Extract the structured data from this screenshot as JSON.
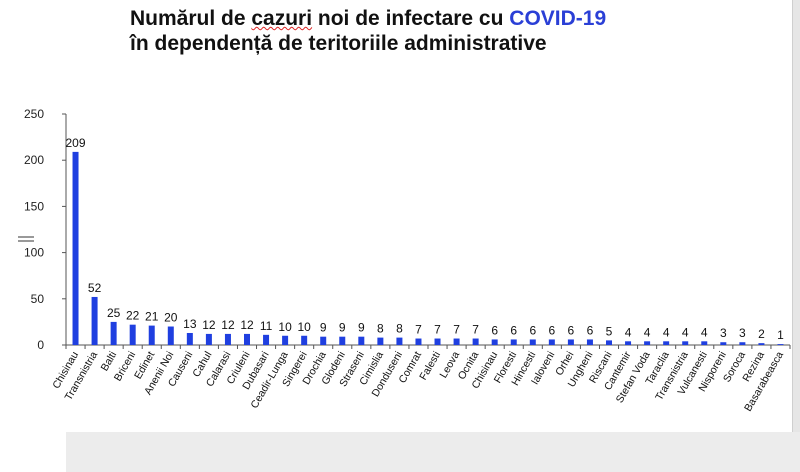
{
  "title": {
    "line1_prefix": "Numărul de ",
    "line1_wavy": "cazuri",
    "line1_mid": " noi de infectare cu ",
    "line1_accent": "COVID-19",
    "line2": "în dependență de teritoriile administrative"
  },
  "colors": {
    "bar": "#1f3fe0",
    "accent": "#2a3fd6",
    "axis": "#555555"
  },
  "chart_data": {
    "type": "bar",
    "title": "Numărul de cazuri noi de infectare cu COVID-19 în dependență de teritoriile administrative",
    "xlabel": "",
    "ylabel": "",
    "ylim": [
      0,
      250
    ],
    "yticks": [
      0,
      50,
      100,
      150,
      200,
      250
    ],
    "grid": false,
    "categories": [
      "Chisinau",
      "Transnistria",
      "Balti",
      "Briceni",
      "Edinet",
      "Anenii Noi",
      "Causeni",
      "Cahul",
      "Calarasi",
      "Criuleni",
      "Dubasari",
      "Ceadir-Lunga",
      "Singerei",
      "Drochia",
      "Glodeni",
      "Straseni",
      "Cimislia",
      "Donduseni",
      "Comrat",
      "Falesti",
      "Leova",
      "Ocnita",
      "Chisinau",
      "Floresti",
      "Hincesti",
      "Ialoveni",
      "Orhei",
      "Ungheni",
      "Riscani",
      "Cantemir",
      "Stefan Voda",
      "Taraclia",
      "Transnistria",
      "Vulcanesti",
      "Nisporeni",
      "Soroca",
      "Rezina",
      "Basarabeasca"
    ],
    "values": [
      209,
      52,
      25,
      22,
      21,
      20,
      13,
      12,
      12,
      12,
      11,
      10,
      10,
      9,
      9,
      9,
      8,
      8,
      7,
      7,
      7,
      7,
      6,
      6,
      6,
      6,
      6,
      6,
      5,
      4,
      4,
      4,
      4,
      4,
      3,
      3,
      2,
      1
    ]
  }
}
